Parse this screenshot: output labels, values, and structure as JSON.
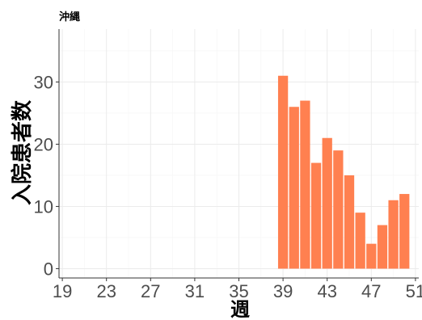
{
  "chart_data": {
    "type": "bar",
    "title": "沖縄",
    "xlabel": "週",
    "ylabel": "入院患者数",
    "x": [
      39,
      40,
      41,
      42,
      43,
      44,
      45,
      46,
      47,
      48,
      49,
      50
    ],
    "values": [
      31,
      26,
      27,
      17,
      21,
      19,
      15,
      9,
      4,
      7,
      11,
      12
    ],
    "xlim": [
      18.7,
      51.3
    ],
    "ylim": [
      -1.5,
      38.5
    ],
    "x_ticks": [
      19,
      23,
      27,
      31,
      35,
      39,
      43,
      47,
      51
    ],
    "y_ticks": [
      0,
      10,
      20,
      30
    ],
    "bar_color": "#ff8050",
    "grid": true,
    "legend": "none"
  }
}
